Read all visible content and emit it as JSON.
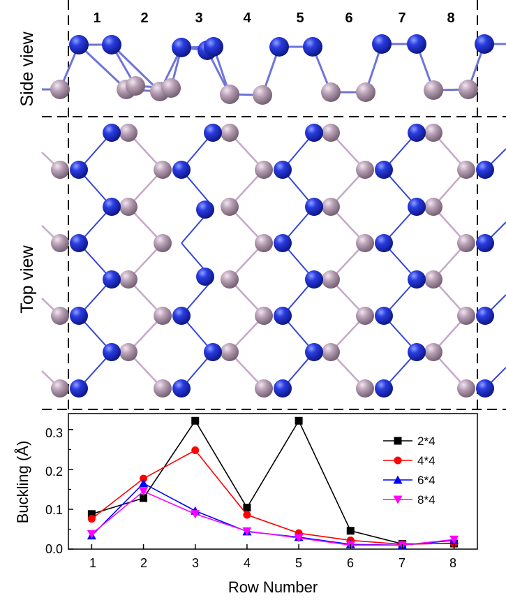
{
  "panels": {
    "side_view_label": "Side view",
    "top_view_label": "Top view"
  },
  "row_labels": [
    "1",
    "2",
    "3",
    "4",
    "5",
    "6",
    "7",
    "8"
  ],
  "colors": {
    "atom_blue": "#1a2bd0",
    "atom_pink": "#b7a0b5",
    "bond_blue": "#3346d6",
    "bond_pink": "#c6a8c9"
  },
  "chart_data": {
    "type": "line",
    "xlabel": "Row Number",
    "ylabel": "Buckling (Å)",
    "x": [
      1,
      2,
      3,
      4,
      5,
      6,
      7,
      8
    ],
    "xlim": [
      0.55,
      8.45
    ],
    "ylim": [
      0,
      0.34
    ],
    "xticks": [
      "1",
      "2",
      "3",
      "4",
      "5",
      "6",
      "7",
      "8"
    ],
    "yticks": [
      "0.0",
      "0.1",
      "0.2",
      "0.3"
    ],
    "legend_position": "top-right",
    "series": [
      {
        "name": "2*4",
        "color": "#000000",
        "marker": "square",
        "values": [
          0.088,
          0.128,
          0.322,
          0.104,
          0.322,
          0.046,
          0.013,
          0.014
        ]
      },
      {
        "name": "4*4",
        "color": "#ff0000",
        "marker": "circle",
        "values": [
          0.076,
          0.177,
          0.248,
          0.086,
          0.04,
          0.022,
          0.012,
          0.015
        ]
      },
      {
        "name": "6*4",
        "color": "#0000ff",
        "marker": "triangle-up",
        "values": [
          0.034,
          0.165,
          0.096,
          0.044,
          0.03,
          0.012,
          0.01,
          0.022
        ]
      },
      {
        "name": "8*4",
        "color": "#ff00ff",
        "marker": "triangle-down",
        "values": [
          0.038,
          0.145,
          0.088,
          0.045,
          0.028,
          0.01,
          0.01,
          0.024
        ]
      }
    ]
  }
}
